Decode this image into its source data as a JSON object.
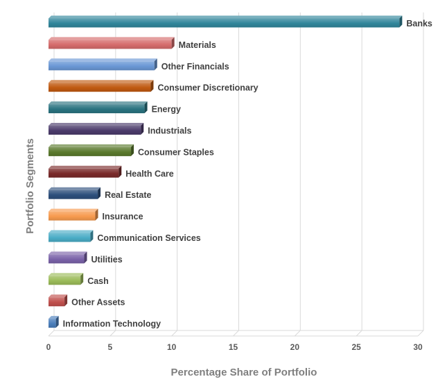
{
  "chart_data": {
    "type": "bar",
    "orientation": "horizontal",
    "style": "3d",
    "title": "",
    "xlabel": "Percentage Share of Portfolio",
    "ylabel": "Portfolio Segments",
    "xlim": [
      0,
      30
    ],
    "xticks": [
      0,
      5,
      10,
      15,
      20,
      25,
      30
    ],
    "grid": true,
    "categories": [
      "Banks",
      "Materials",
      "Other Financials",
      "Consumer Discretionary",
      "Energy",
      "Industrials",
      "Consumer Staples",
      "Health Care",
      "Real Estate",
      "Insurance",
      "Communication Services",
      "Utilities",
      "Cash",
      "Other Assets",
      "Information Technology"
    ],
    "values": [
      28.5,
      10.0,
      8.6,
      8.3,
      7.8,
      7.5,
      6.7,
      5.7,
      4.0,
      3.8,
      3.4,
      2.9,
      2.6,
      1.3,
      0.6
    ],
    "colors": [
      "#31869b",
      "#d56b6b",
      "#6a97d5",
      "#c05a11",
      "#2a7380",
      "#4b3b6b",
      "#5b7a2e",
      "#7a2a2a",
      "#2d4f7c",
      "#f79a4e",
      "#4aacc6",
      "#7a62a8",
      "#9bbb59",
      "#c0504d",
      "#4a7ebb"
    ]
  }
}
